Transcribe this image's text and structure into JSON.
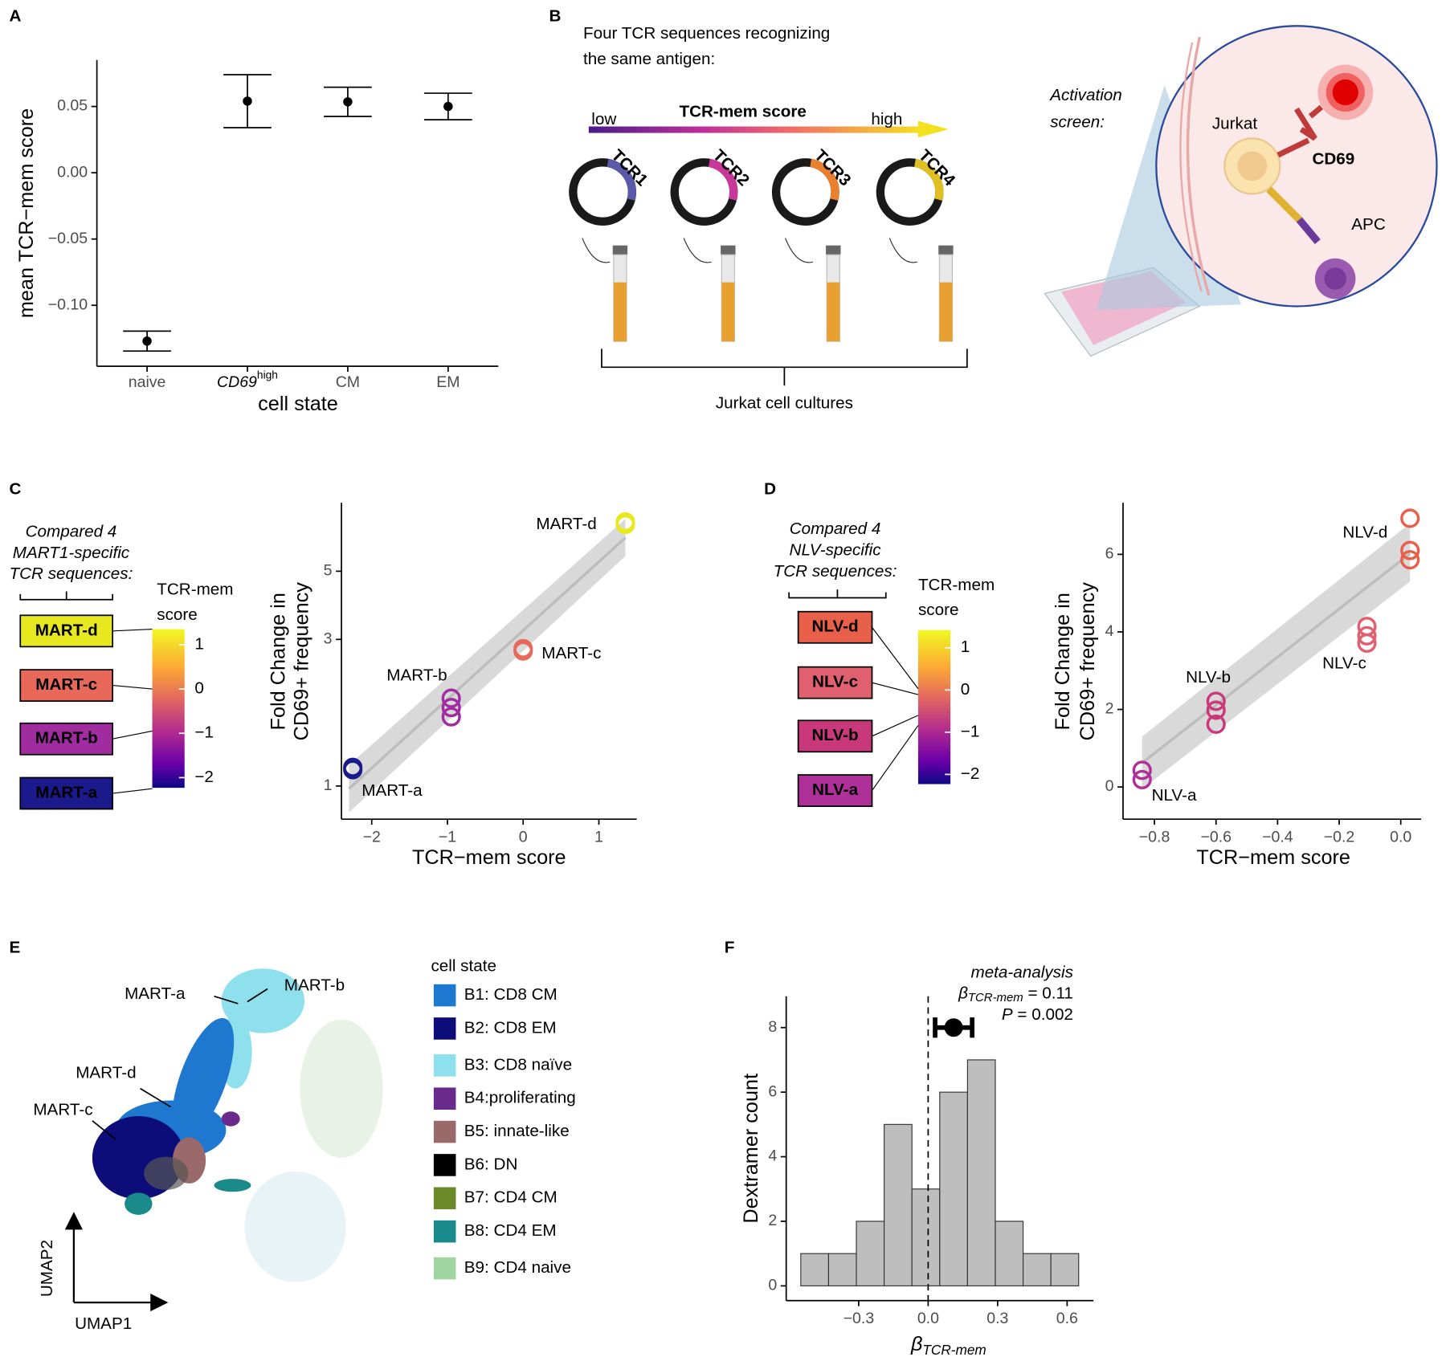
{
  "panel_labels": [
    "A",
    "B",
    "C",
    "D",
    "E",
    "F"
  ],
  "panel_b": {
    "title": [
      "Four TCR sequences recognizing",
      "the same antigen:"
    ],
    "gradient_label": "TCR-mem score",
    "low": "low",
    "high": "high",
    "constructs": [
      "TCR1",
      "TCR2",
      "TCR3",
      "TCR4"
    ],
    "cultures_label": "Jurkat cell cultures",
    "screen_label": [
      "Activation",
      "screen:"
    ],
    "cell": "Jurkat",
    "marker": "CD69",
    "apc": "APC"
  },
  "panel_e": {
    "labels": [
      "MART-a",
      "MART-b",
      "MART-d",
      "MART-c"
    ],
    "x_label": "UMAP1",
    "y_label": "UMAP2",
    "legend_title": "cell state",
    "legend": [
      {
        "name": "B1: CD8 CM",
        "color": "#1f78d0"
      },
      {
        "name": "B2: CD8 EM",
        "color": "#0d0d7a"
      },
      {
        "name": "B3: CD8 naïve",
        "color": "#8ee0ec"
      },
      {
        "name": "B4:proliferating",
        "color": "#6a2a8c"
      },
      {
        "name": "B5: innate-like",
        "color": "#9a6a6a"
      },
      {
        "name": "B6: DN",
        "color": "#000000"
      },
      {
        "name": "B7: CD4 CM",
        "color": "#6a8a2a"
      },
      {
        "name": "B8: CD4 EM",
        "color": "#1a8a8a"
      },
      {
        "name": "B9: CD4 naive",
        "color": "#a0d4a0"
      }
    ]
  },
  "chart_data": [
    {
      "type": "errorbar",
      "ylabel": "mean TCR−mem score",
      "xlabel": "cell state",
      "categories": [
        "naive",
        "CD69",
        "CM",
        "EM"
      ],
      "category_superscripts": [
        null,
        "high",
        null,
        null
      ],
      "values": [
        -0.127,
        0.054,
        0.0535,
        0.05
      ],
      "errors": [
        0.0075,
        0.02,
        0.011,
        0.01
      ],
      "color": "#000000",
      "ylim": [
        -0.146,
        0.085
      ],
      "yticks": [
        {
          "value": -0.1,
          "label": "−0.10"
        },
        {
          "value": -0.05,
          "label": "−0.05"
        },
        {
          "value": 0,
          "label": "0.00"
        },
        {
          "value": 0.05,
          "label": "0.05"
        }
      ]
    },
    {
      "type": "scatter",
      "log_y": true,
      "xlabel": "TCR−mem score",
      "ylabel": [
        "Fold Change in",
        "CD69+ frequency"
      ],
      "xlim": [
        -2.4,
        1.5
      ],
      "xticks": [
        {
          "value": -2,
          "label": "−2"
        },
        {
          "value": -1,
          "label": "−1"
        },
        0,
        1
      ],
      "ylim": [
        0.78,
        8.35
      ],
      "yticks": [
        1,
        3,
        5
      ],
      "series": [
        {
          "name": "MART-a",
          "color": "#1a1a8c",
          "x": [
            -2.25,
            -2.25
          ],
          "values": [
            1.15,
            1.13
          ]
        },
        {
          "name": "MART-b",
          "color": "#a02ca0",
          "x": [
            -0.95,
            -0.95,
            -0.95
          ],
          "values": [
            1.93,
            1.8,
            1.68
          ]
        },
        {
          "name": "MART-c",
          "color": "#e8685a",
          "x": [
            0,
            0
          ],
          "values": [
            2.8,
            2.75
          ]
        },
        {
          "name": "MART-d",
          "color": "#e8e820",
          "x": [
            1.35,
            1.35
          ],
          "values": [
            7.24,
            7.1
          ]
        }
      ],
      "fit": {
        "x": [
          -2.3,
          1.35
        ],
        "values": [
          0.98,
          6.43
        ],
        "lower": [
          0.82,
          5.6
        ],
        "upper": [
          1.17,
          7.4
        ],
        "color": "#bdbdbd",
        "band_color": "#d9d9d9"
      },
      "legend": {
        "header": [
          "Compared 4",
          "MART1-specific",
          "TCR sequences:"
        ],
        "title": [
          "TCR-mem",
          "score"
        ],
        "colorbar_lim": [
          -2.23,
          1.35
        ],
        "colorbar_ticks": [
          1,
          0,
          {
            "value": -1,
            "label": "−1"
          },
          {
            "value": -2,
            "label": "−2"
          }
        ]
      }
    },
    {
      "type": "scatter",
      "log_y": false,
      "xlabel": "TCR−mem score",
      "ylabel": [
        "Fold Change in",
        "CD69+ frequency"
      ],
      "xlim": [
        -0.902,
        0.066
      ],
      "xticks": [
        {
          "value": -0.8,
          "label": "−0.8"
        },
        {
          "value": -0.6,
          "label": "−0.6"
        },
        {
          "value": -0.4,
          "label": "−0.4"
        },
        {
          "value": -0.2,
          "label": "−0.2"
        },
        {
          "value": 0,
          "label": "0.0"
        }
      ],
      "ylim": [
        -0.83,
        7.33
      ],
      "yticks": [
        0,
        2,
        4,
        6
      ],
      "series": [
        {
          "name": "NLV-a",
          "color": "#b0309a",
          "x": [
            -0.84,
            -0.84
          ],
          "values": [
            0.43,
            0.19
          ]
        },
        {
          "name": "NLV-b",
          "color": "#c8387a",
          "x": [
            -0.6,
            -0.6,
            -0.6
          ],
          "values": [
            2.21,
            1.98,
            1.62
          ]
        },
        {
          "name": "NLV-c",
          "color": "#e06070",
          "x": [
            -0.11,
            -0.11,
            -0.11
          ],
          "values": [
            4.14,
            3.9,
            3.71
          ]
        },
        {
          "name": "NLV-d",
          "color": "#e8604a",
          "x": [
            0.03,
            0.03,
            0.03
          ],
          "values": [
            6.93,
            6.1,
            5.86
          ]
        }
      ],
      "fit": {
        "x": [
          -0.84,
          0.03
        ],
        "values": [
          0.62,
          6.02
        ],
        "lower": [
          -0.05,
          5.3
        ],
        "upper": [
          1.3,
          6.8
        ],
        "color": "#bdbdbd",
        "band_color": "#d9d9d9"
      },
      "legend": {
        "header": [
          "Compared 4",
          "NLV-specific",
          "TCR sequences:"
        ],
        "title": [
          "TCR-mem",
          "score"
        ],
        "colorbar_lim": [
          -2.23,
          1.42
        ],
        "colorbar_ticks": [
          1,
          0,
          {
            "value": -1,
            "label": "−1"
          },
          {
            "value": -2,
            "label": "−2"
          }
        ]
      }
    },
    {
      "type": "histogram",
      "xlabel": "β",
      "xlabel_subscript": "TCR-mem",
      "ylabel": "Dextramer count",
      "bins": [
        -0.55,
        -0.43,
        -0.31,
        -0.19,
        -0.07,
        0.05,
        0.17,
        0.29,
        0.41,
        0.53,
        0.65
      ],
      "values": [
        1,
        1,
        2,
        5,
        3,
        6,
        7,
        2,
        1,
        1
      ],
      "color": "#bebebe",
      "xlim": [
        -0.613,
        0.714
      ],
      "xticks": [
        {
          "value": -0.3,
          "label": "−0.3"
        },
        {
          "value": 0,
          "label": "0.0"
        },
        0.3,
        0.6
      ],
      "ylim": [
        -0.457,
        8.97
      ],
      "yticks": [
        0,
        2,
        4,
        6,
        8
      ],
      "reference_line": 0,
      "meta": {
        "label": "meta-analysis",
        "symbol": "β",
        "subscript": "TCR-mem",
        "estimate_text": " = 0.11",
        "p_symbol": "P",
        "p_text": " = 0.002",
        "x": 0.11,
        "ci": [
          0.03,
          0.19
        ],
        "y": 8
      }
    }
  ]
}
